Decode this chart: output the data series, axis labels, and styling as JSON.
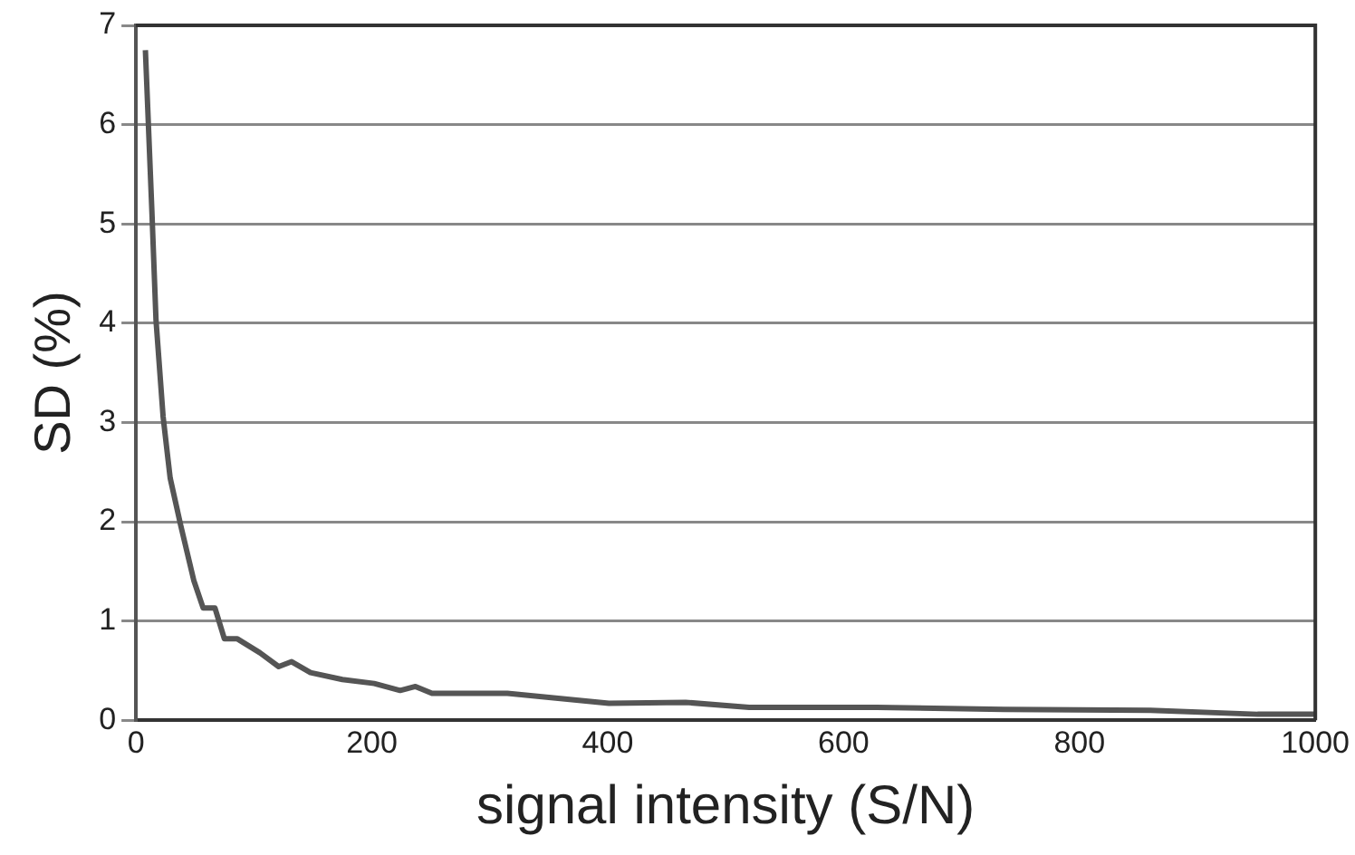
{
  "chart_data": {
    "type": "line",
    "xlabel": "signal intensity (S/N)",
    "ylabel": "SD (%)",
    "x": [
      8,
      13.5,
      17,
      23,
      29,
      38,
      49,
      57,
      67,
      75,
      86,
      105,
      121,
      132,
      148,
      175,
      202,
      224,
      237,
      251,
      283,
      315,
      401,
      466,
      520,
      628,
      736,
      860,
      951,
      1000
    ],
    "series": [
      {
        "color": "#555555",
        "values": [
          6.75,
          5.13,
          4.03,
          3.06,
          2.44,
          1.96,
          1.41,
          1.13,
          1.13,
          0.82,
          0.82,
          0.68,
          0.54,
          0.59,
          0.48,
          0.41,
          0.37,
          0.3,
          0.34,
          0.27,
          0.27,
          0.27,
          0.17,
          0.18,
          0.13,
          0.13,
          0.11,
          0.1,
          0.06,
          0.06
        ]
      }
    ],
    "xlim": [
      0,
      1000
    ],
    "xticks": [
      0,
      200,
      400,
      600,
      800,
      1000
    ],
    "ylim": [
      0,
      7
    ],
    "yticks": [
      0,
      1,
      2,
      3,
      4,
      5,
      6,
      7
    ],
    "grid": "y",
    "legend": false,
    "marker": "none",
    "line_style": "solid"
  }
}
